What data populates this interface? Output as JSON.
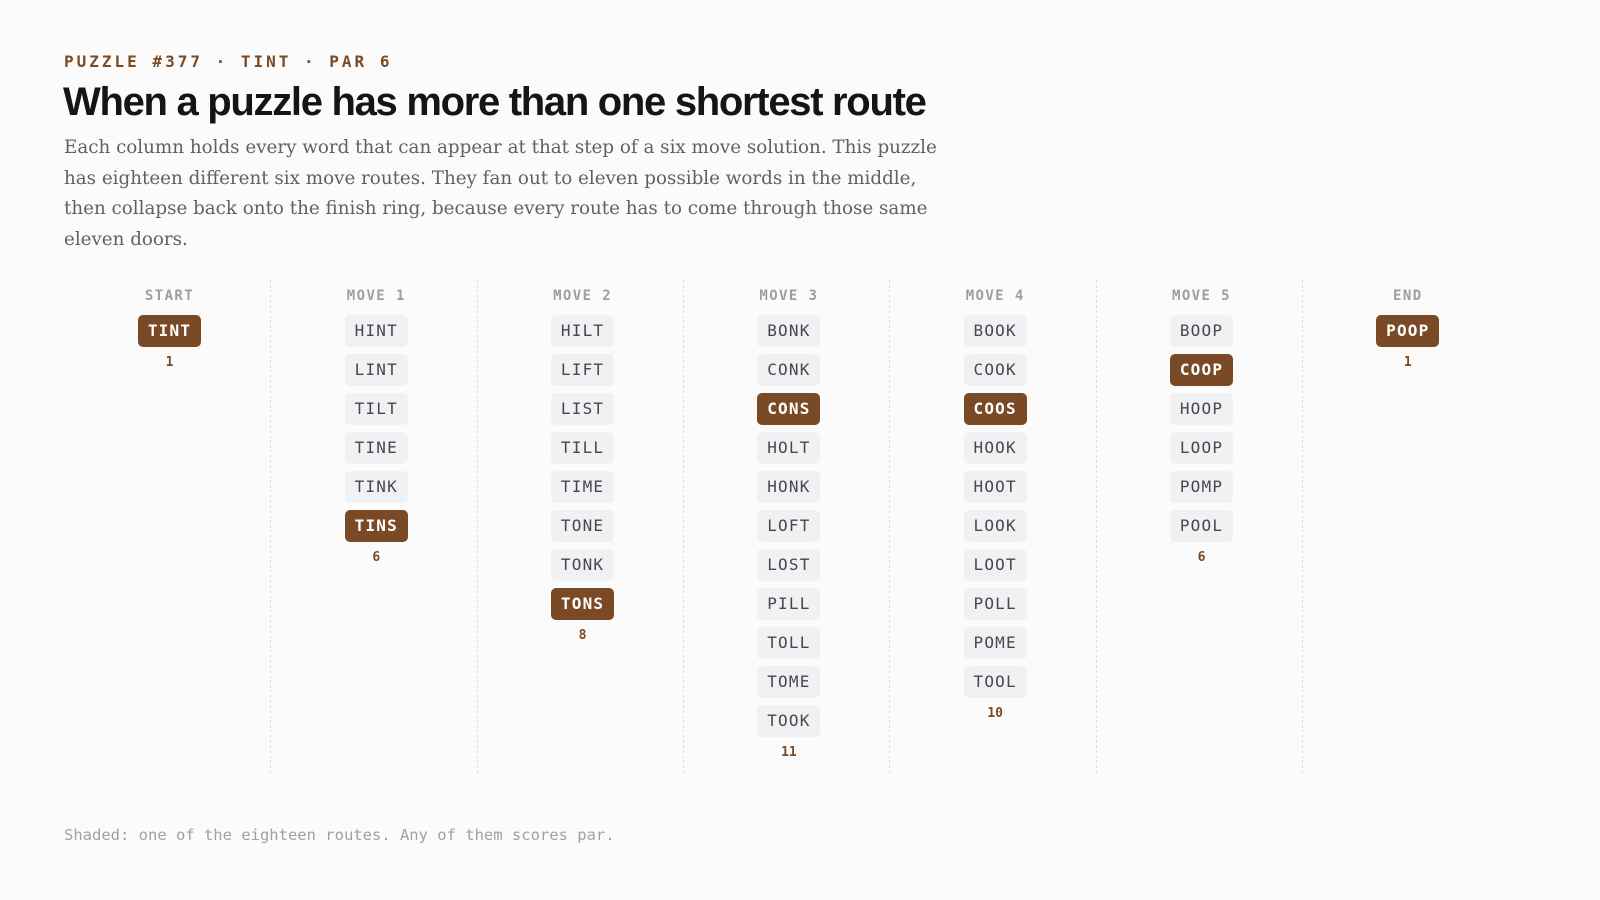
{
  "header": {
    "eyebrow": "PUZZLE #377 · TINT · PAR 6",
    "title": "When a puzzle has more than one shortest route",
    "description": "Each column holds every word that can appear at that step of a six move solution. This puzzle has eighteen different six move routes. They fan out to eleven possible words in the middle, then collapse back onto the finish ring, because every route has to come through those same eleven doors."
  },
  "colors": {
    "accent": "#7a4a26",
    "chip": "#f0f1f3",
    "background": "#fbfbfb"
  },
  "columns": [
    {
      "label": "START",
      "count": "1",
      "highlight": "TINT",
      "words": [
        "TINT"
      ]
    },
    {
      "label": "MOVE 1",
      "count": "6",
      "highlight": "TINS",
      "words": [
        "HINT",
        "LINT",
        "TILT",
        "TINE",
        "TINK",
        "TINS"
      ]
    },
    {
      "label": "MOVE 2",
      "count": "8",
      "highlight": "TONS",
      "words": [
        "HILT",
        "LIFT",
        "LIST",
        "TILL",
        "TIME",
        "TONE",
        "TONK",
        "TONS"
      ]
    },
    {
      "label": "MOVE 3",
      "count": "11",
      "highlight": "CONS",
      "words": [
        "BONK",
        "CONK",
        "CONS",
        "HOLT",
        "HONK",
        "LOFT",
        "LOST",
        "PILL",
        "TOLL",
        "TOME",
        "TOOK"
      ]
    },
    {
      "label": "MOVE 4",
      "count": "10",
      "highlight": "COOS",
      "words": [
        "BOOK",
        "COOK",
        "COOS",
        "HOOK",
        "HOOT",
        "LOOK",
        "LOOT",
        "POLL",
        "POME",
        "TOOL"
      ]
    },
    {
      "label": "MOVE 5",
      "count": "6",
      "highlight": "COOP",
      "words": [
        "BOOP",
        "COOP",
        "HOOP",
        "LOOP",
        "POMP",
        "POOL"
      ]
    },
    {
      "label": "END",
      "count": "1",
      "highlight": "POOP",
      "words": [
        "POOP"
      ]
    }
  ],
  "footer": {
    "note": "Shaded: one of the eighteen routes. Any of them scores par."
  }
}
